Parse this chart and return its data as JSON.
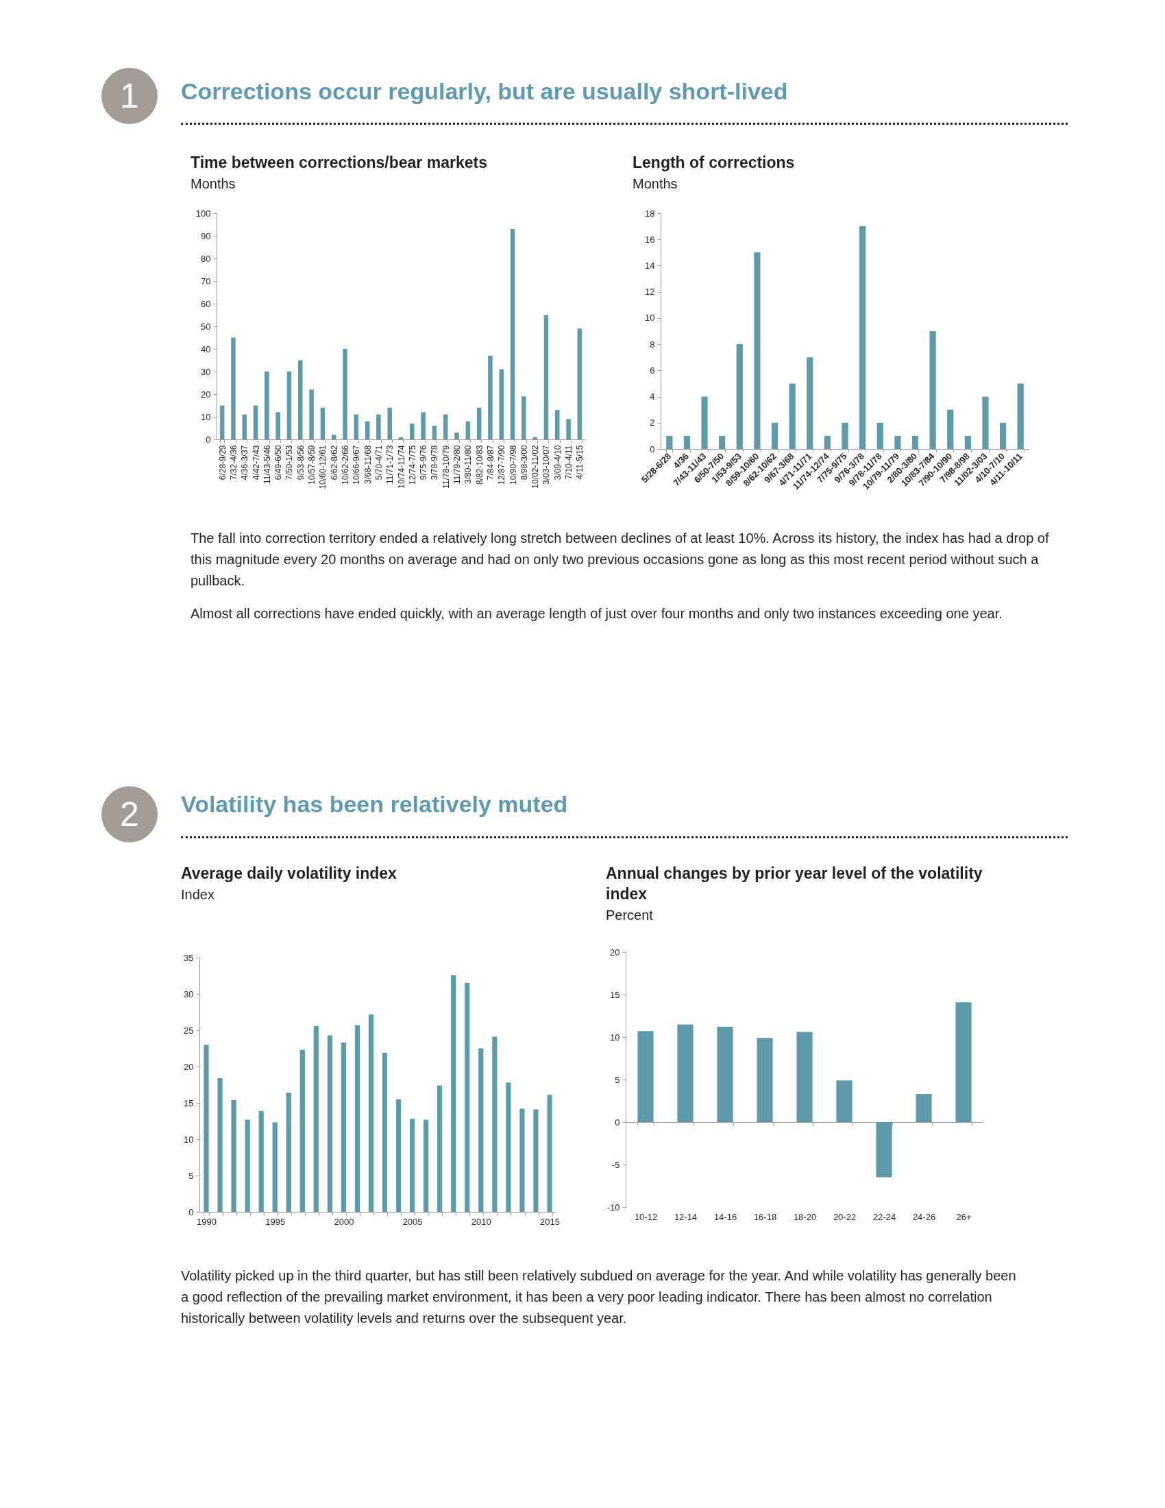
{
  "chart_data": [
    {
      "type": "other",
      "title": "Corrections occur regularly, but are usually short-lived",
      "annotations": [
        "1"
      ]
    },
    {
      "type": "bar",
      "title": "Time between corrections/bear markets",
      "subtitle": "Months",
      "categories": [
        "6/28-9/29",
        "7/32-4/36",
        "4/36-3/37",
        "4/42-7/43",
        "11/43-5/46",
        "6/49-6/50",
        "7/50-1/53",
        "9/53-8/56",
        "10/57-8/59",
        "10/60-12/61",
        "6/62-8/62",
        "10/62-2/66",
        "10/66-9/67",
        "3/68-11/68",
        "5/70-4/71",
        "11/71-1/73",
        "10/74-11/74",
        "12/74-7/75",
        "9/75-9/76",
        "3/78-9/78",
        "11/78-10/79",
        "11/79-2/80",
        "3/80-11/80",
        "8/82-10/83",
        "7/84-8/87",
        "12/87-7/90",
        "10/90-7/98",
        "8/98-3/00",
        "10/02-11/02",
        "3/03-10/07",
        "3/09-4/10",
        "7/10-4/11",
        "4/11-5/15"
      ],
      "values": [
        15,
        45,
        11,
        15,
        30,
        12,
        30,
        35,
        22,
        14,
        2,
        40,
        11,
        8,
        11,
        14,
        1,
        7,
        12,
        6,
        11,
        3,
        8,
        14,
        37,
        31,
        93,
        19,
        1,
        55,
        13,
        9,
        49
      ],
      "color": "#5e9aaa",
      "ylim": [
        0,
        100
      ],
      "yticks": [
        0,
        10,
        20,
        30,
        40,
        50,
        60,
        70,
        80,
        90,
        100
      ]
    },
    {
      "type": "bar",
      "title": "Length of corrections",
      "subtitle": "Months",
      "categories": [
        "5/28-6/28",
        "4/36",
        "7/43-11/43",
        "6/50-7/50",
        "1/53-9/53",
        "8/59-10/60",
        "8/62-10/62",
        "9/67-3/68",
        "4/71-11/71",
        "11/74-12/74",
        "7/75-9/75",
        "9/76-3/78",
        "9/78-11/78",
        "10/79-11/79",
        "2/80-3/80",
        "10/83-7/84",
        "7/90-10/90",
        "7/98-8/98",
        "11/02-3/03",
        "4/10-7/10",
        "4/11-10/11"
      ],
      "values": [
        1,
        1,
        4,
        1,
        8,
        15,
        2,
        5,
        7,
        1,
        2,
        17,
        2,
        1,
        1,
        9,
        3,
        1,
        4,
        2,
        5
      ],
      "color": "#5e9aaa",
      "ylim": [
        0,
        18
      ],
      "yticks": [
        0,
        2,
        4,
        6,
        8,
        10,
        12,
        14,
        16,
        18
      ]
    },
    {
      "type": "other",
      "annotations": [
        "The fall into correction territory ended a relatively long stretch between declines of at least 10%. Across its history, the index has had a drop of this magnitude every 20 months on average and had on only two previous occasions gone as long as this most recent period without such a pullback.",
        "Almost all corrections have ended quickly, with an average length of just over four months and only two instances exceeding one year."
      ]
    },
    {
      "type": "other",
      "title": "Volatility has been relatively muted",
      "annotations": [
        "2"
      ]
    },
    {
      "type": "bar",
      "title": "Average daily volatility index",
      "subtitle": "Index",
      "categories": [
        "1990",
        null,
        null,
        null,
        null,
        "1995",
        null,
        null,
        null,
        null,
        "2000",
        null,
        null,
        null,
        null,
        "2005",
        null,
        null,
        null,
        null,
        "2010",
        null,
        null,
        null,
        null,
        "2015"
      ],
      "values": [
        23.0,
        18.4,
        15.4,
        12.7,
        13.9,
        12.3,
        16.4,
        22.3,
        25.6,
        24.3,
        23.3,
        25.7,
        27.2,
        21.9,
        15.5,
        12.8,
        12.7,
        17.4,
        32.6,
        31.5,
        22.5,
        24.1,
        17.8,
        14.2,
        14.1,
        16.1
      ],
      "color": "#5e9aaa",
      "ylim": [
        0,
        35
      ],
      "yticks": [
        0,
        5,
        10,
        15,
        20,
        25,
        30,
        35
      ]
    },
    {
      "type": "bar",
      "title": "Annual changes by prior year level of the volatility index",
      "subtitle": "Percent",
      "categories": [
        "10-12",
        "12-14",
        "14-16",
        "16-18",
        "18-20",
        "20-22",
        "22-24",
        "24-26",
        "26+"
      ],
      "values": [
        10.7,
        11.5,
        11.2,
        9.9,
        10.6,
        4.9,
        -6.5,
        3.3,
        14.1
      ],
      "color": "#5e9aaa",
      "ylim": [
        -10,
        20
      ],
      "yticks": [
        -10,
        -5,
        0,
        5,
        10,
        15,
        20
      ]
    },
    {
      "type": "other",
      "annotations": [
        "Volatility picked up in the third quarter, but has still been relatively subdued on average for the year. And while volatility has generally been a good reflection of the prevailing market environment, it has been a very poor leading indicator. There has been almost no correlation historically between volatility levels and returns over the subsequent year."
      ]
    }
  ]
}
